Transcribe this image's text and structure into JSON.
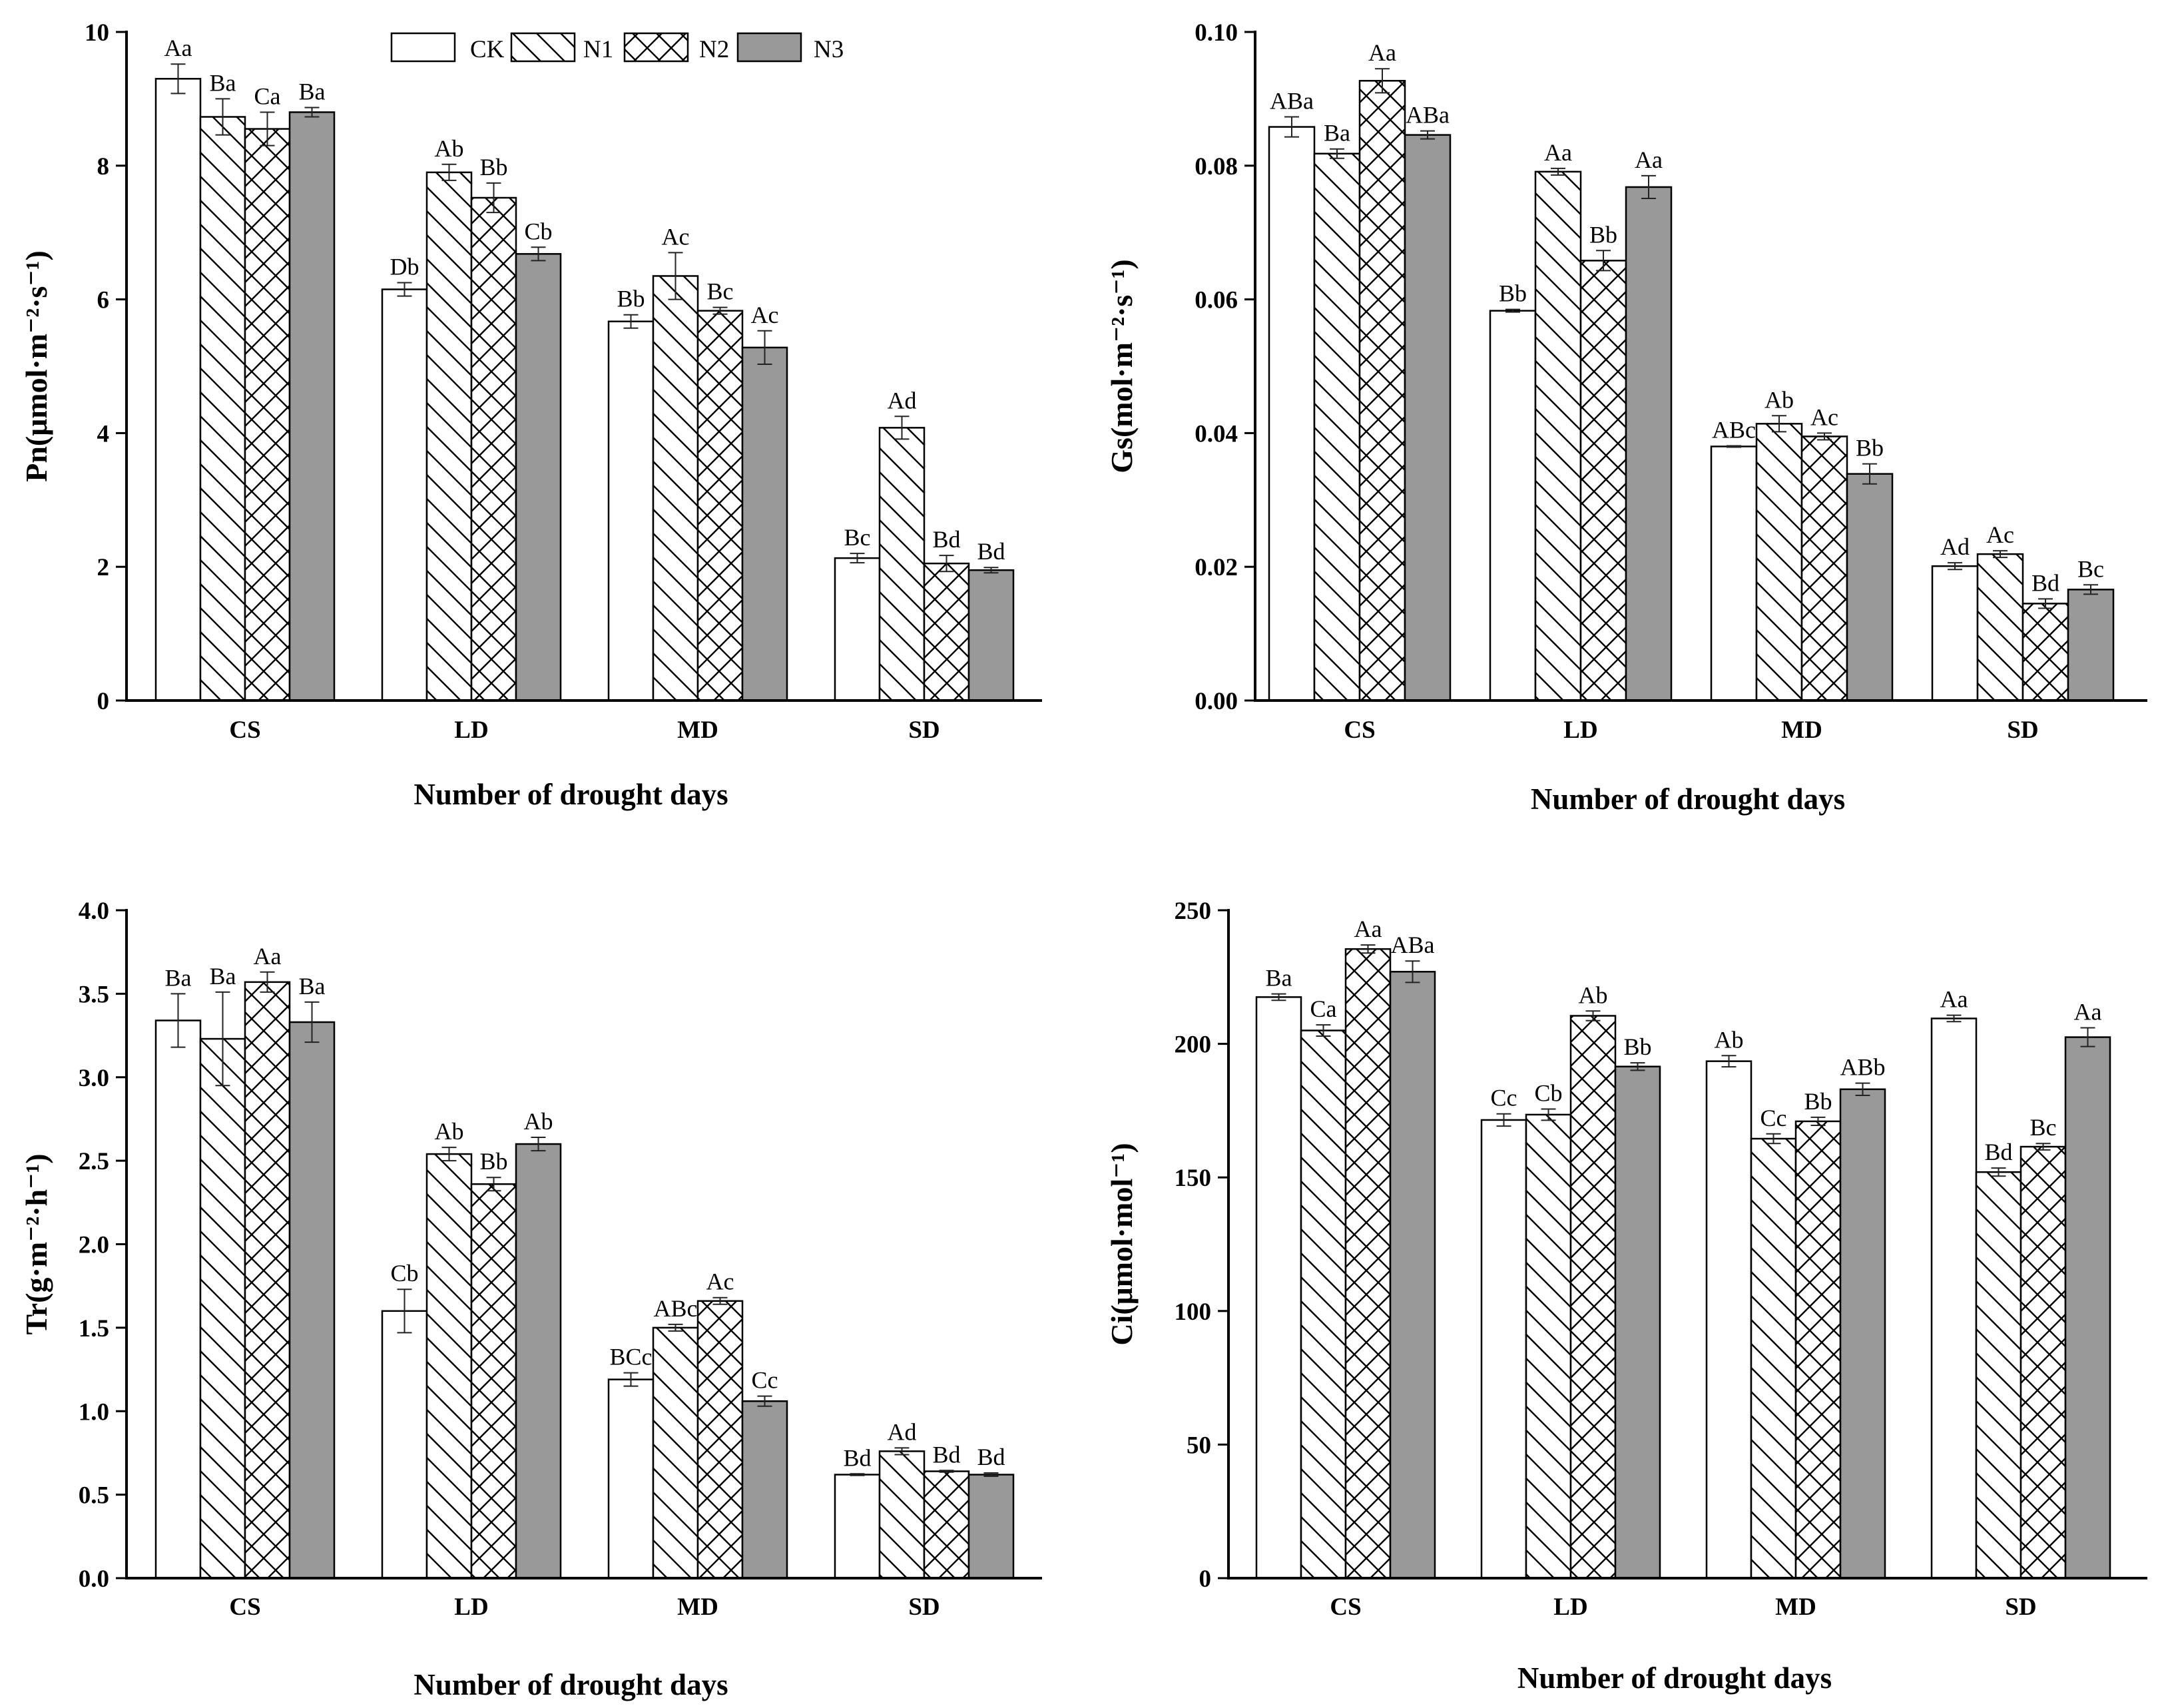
{
  "legend": [
    "CK",
    "N1",
    "N2",
    "N3"
  ],
  "colors": {
    "n3_fill": "#999999",
    "stroke": "#000000",
    "background": "#ffffff"
  },
  "chart_data": [
    {
      "type": "bar",
      "title": "",
      "xlabel": "Number of drought days",
      "ylabel": "Pn(μmol·m⁻²·s⁻¹)",
      "ylim": [
        0,
        10
      ],
      "yticks": [
        "0",
        "2",
        "4",
        "6",
        "8",
        "10"
      ],
      "ytick_values": [
        0,
        2,
        4,
        6,
        8,
        10
      ],
      "categories": [
        "CS",
        "LD",
        "MD",
        "SD"
      ],
      "series": [
        {
          "name": "CK",
          "values": [
            9.3,
            6.15,
            5.67,
            2.13
          ],
          "errors": [
            0.22,
            0.1,
            0.1,
            0.07
          ],
          "labels": [
            "Aa",
            "Db",
            "Bb",
            "Bc"
          ]
        },
        {
          "name": "N1",
          "values": [
            8.73,
            7.9,
            6.35,
            4.08
          ],
          "errors": [
            0.27,
            0.12,
            0.35,
            0.17
          ],
          "labels": [
            "Ba",
            "Ab",
            "Ac",
            "Ad"
          ]
        },
        {
          "name": "N2",
          "values": [
            8.55,
            7.52,
            5.83,
            2.05
          ],
          "errors": [
            0.25,
            0.22,
            0.05,
            0.12
          ],
          "labels": [
            "Ca",
            "Bb",
            "Bc",
            "Bd"
          ]
        },
        {
          "name": "N3",
          "values": [
            8.8,
            6.68,
            5.28,
            1.95
          ],
          "errors": [
            0.07,
            0.1,
            0.25,
            0.04
          ],
          "labels": [
            "Ba",
            "Cb",
            "Ac",
            "Bd"
          ]
        }
      ]
    },
    {
      "type": "bar",
      "title": "",
      "xlabel": "Number of drought days",
      "ylabel": "Gs(mol·m⁻²·s⁻¹)",
      "ylim": [
        0,
        0.1
      ],
      "yticks": [
        "0.00",
        "0.02",
        "0.04",
        "0.06",
        "0.08",
        "0.10"
      ],
      "ytick_values": [
        0,
        0.02,
        0.04,
        0.06,
        0.08,
        0.1
      ],
      "categories": [
        "CS",
        "LD",
        "MD",
        "SD"
      ],
      "series": [
        {
          "name": "CK",
          "values": [
            0.0858,
            0.0583,
            0.038,
            0.0201
          ],
          "errors": [
            0.0015,
            0.0002,
            0.0001,
            0.0005
          ],
          "labels": [
            "ABa",
            "Bb",
            "ABc",
            "Ad"
          ]
        },
        {
          "name": "N1",
          "values": [
            0.0818,
            0.0791,
            0.0414,
            0.0219
          ],
          "errors": [
            0.0007,
            0.0005,
            0.0012,
            0.0005
          ],
          "labels": [
            "Ba",
            "Aa",
            "Ab",
            "Ac"
          ]
        },
        {
          "name": "N2",
          "values": [
            0.0927,
            0.0658,
            0.0395,
            0.0145
          ],
          "errors": [
            0.0018,
            0.0015,
            0.0005,
            0.0007
          ],
          "labels": [
            "Aa",
            "Bb",
            "Ac",
            "Bd"
          ]
        },
        {
          "name": "N3",
          "values": [
            0.0846,
            0.0768,
            0.0339,
            0.0166
          ],
          "errors": [
            0.0006,
            0.0017,
            0.0015,
            0.0007
          ],
          "labels": [
            "ABa",
            "Aa",
            "Bb",
            "Bc"
          ]
        }
      ]
    },
    {
      "type": "bar",
      "title": "",
      "xlabel": "Number of drought days",
      "ylabel": "Tr(g·m⁻²·h⁻¹)",
      "ylim": [
        0,
        4
      ],
      "yticks": [
        "0.0",
        "0.5",
        "1.0",
        "1.5",
        "2.0",
        "2.5",
        "3.0",
        "3.5",
        "4.0"
      ],
      "ytick_values": [
        0,
        0.5,
        1.0,
        1.5,
        2.0,
        2.5,
        3.0,
        3.5,
        4.0
      ],
      "categories": [
        "CS",
        "LD",
        "MD",
        "SD"
      ],
      "series": [
        {
          "name": "CK",
          "values": [
            3.34,
            1.6,
            1.19,
            0.62
          ],
          "errors": [
            0.16,
            0.13,
            0.04,
            0.005
          ],
          "labels": [
            "Ba",
            "Cb",
            "BCc",
            "Bd"
          ]
        },
        {
          "name": "N1",
          "values": [
            3.23,
            2.54,
            1.5,
            0.76
          ],
          "errors": [
            0.28,
            0.04,
            0.02,
            0.02
          ],
          "labels": [
            "Ba",
            "Ab",
            "ABc",
            "Ad"
          ]
        },
        {
          "name": "N2",
          "values": [
            3.57,
            2.36,
            1.66,
            0.64
          ],
          "errors": [
            0.06,
            0.04,
            0.02,
            0.005
          ],
          "labels": [
            "Aa",
            "Bb",
            "Ac",
            "Bd"
          ]
        },
        {
          "name": "N3",
          "values": [
            3.33,
            2.6,
            1.06,
            0.62
          ],
          "errors": [
            0.12,
            0.04,
            0.03,
            0.01
          ],
          "labels": [
            "Ba",
            "Ab",
            "Cc",
            "Bd"
          ]
        }
      ]
    },
    {
      "type": "bar",
      "title": "",
      "xlabel": "Number of drought days",
      "ylabel": "Ci(μmol·mol⁻¹)",
      "ylim": [
        0,
        250
      ],
      "yticks": [
        "0",
        "50",
        "100",
        "150",
        "200",
        "250"
      ],
      "ytick_values": [
        0,
        50,
        100,
        150,
        200,
        250
      ],
      "categories": [
        "CS",
        "LD",
        "MD",
        "SD"
      ],
      "series": [
        {
          "name": "CK",
          "values": [
            217.5,
            171.5,
            193.5,
            209.5
          ],
          "errors": [
            1.2,
            2.3,
            2.1,
            1.2
          ],
          "labels": [
            "Ba",
            "Cc",
            "Ab",
            "Aa"
          ]
        },
        {
          "name": "N1",
          "values": [
            205,
            173.5,
            164.5,
            152
          ],
          "errors": [
            2.1,
            2.1,
            1.8,
            1.5
          ],
          "labels": [
            "Ca",
            "Cb",
            "Cc",
            "Bd"
          ]
        },
        {
          "name": "N2",
          "values": [
            235.5,
            210.5,
            171,
            161.5
          ],
          "errors": [
            1.5,
            1.8,
            1.5,
            1.2
          ],
          "labels": [
            "Aa",
            "Ab",
            "Bb",
            "Bc"
          ]
        },
        {
          "name": "N3",
          "values": [
            227,
            191.5,
            183,
            202.5
          ],
          "errors": [
            4,
            1.4,
            2.3,
            3.5
          ],
          "labels": [
            "ABa",
            "Bb",
            "ABb",
            "Aa"
          ]
        }
      ]
    }
  ]
}
